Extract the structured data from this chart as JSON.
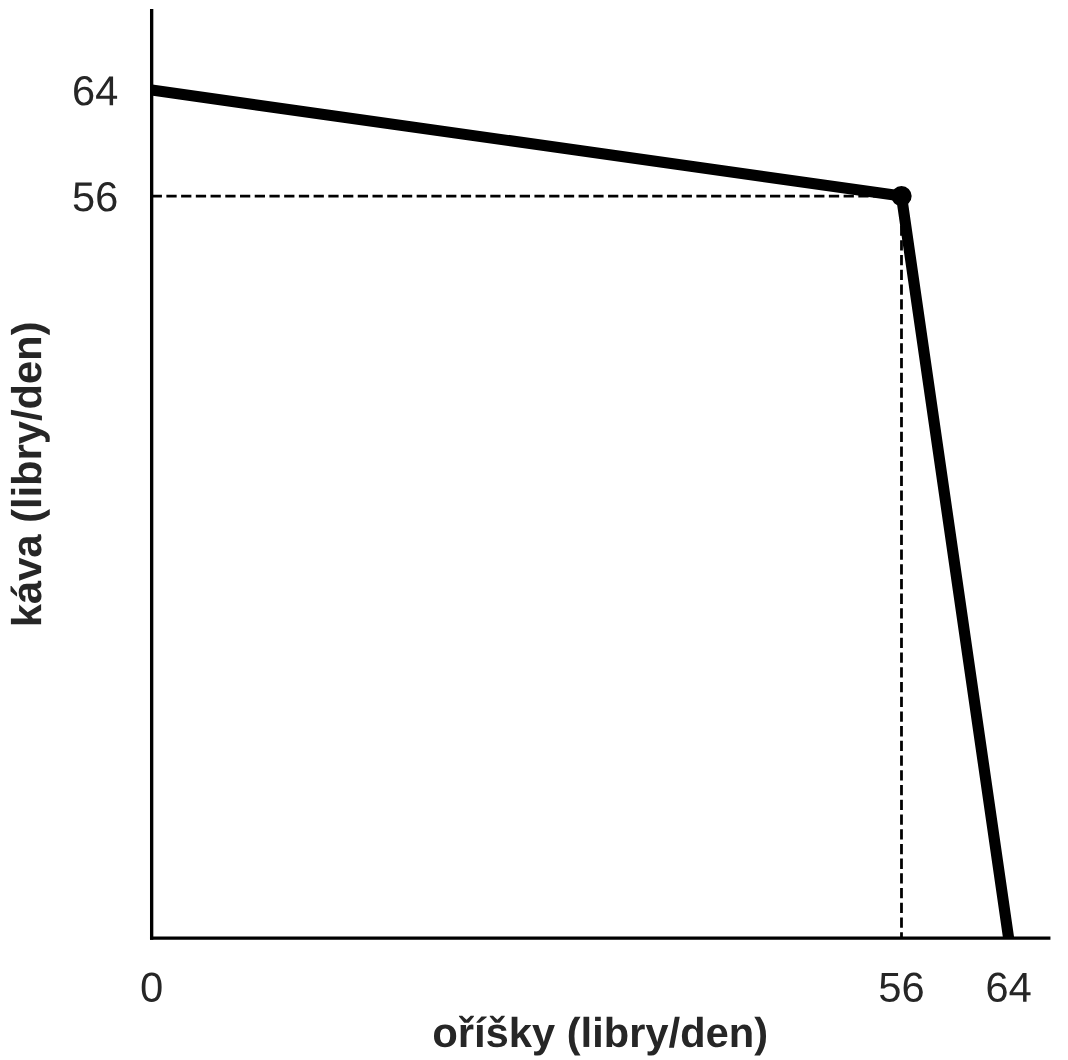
{
  "chart_data": {
    "type": "line",
    "xlabel": "oříšky (libry/den)",
    "ylabel": "káva (libry/den)",
    "xlim": [
      0,
      67
    ],
    "ylim": [
      0,
      70
    ],
    "xticks": [
      0,
      56,
      64
    ],
    "yticks": [
      56,
      64
    ],
    "grid": false,
    "legend": false,
    "series": [
      {
        "color": "#000000",
        "x": [
          0,
          56,
          64
        ],
        "values": [
          64,
          56,
          0
        ],
        "line_style": "solid",
        "marker": "none"
      },
      {
        "type": "scatter",
        "color": "#000000",
        "x": [
          56
        ],
        "values": [
          56
        ],
        "marker": "circle"
      },
      {
        "color": "#000000",
        "x": [
          0,
          56
        ],
        "values": [
          56,
          56
        ],
        "line_style": "dashed",
        "marker": "none"
      },
      {
        "color": "#000000",
        "x": [
          56,
          56
        ],
        "values": [
          56,
          0
        ],
        "line_style": "dashed",
        "marker": "none"
      }
    ]
  }
}
